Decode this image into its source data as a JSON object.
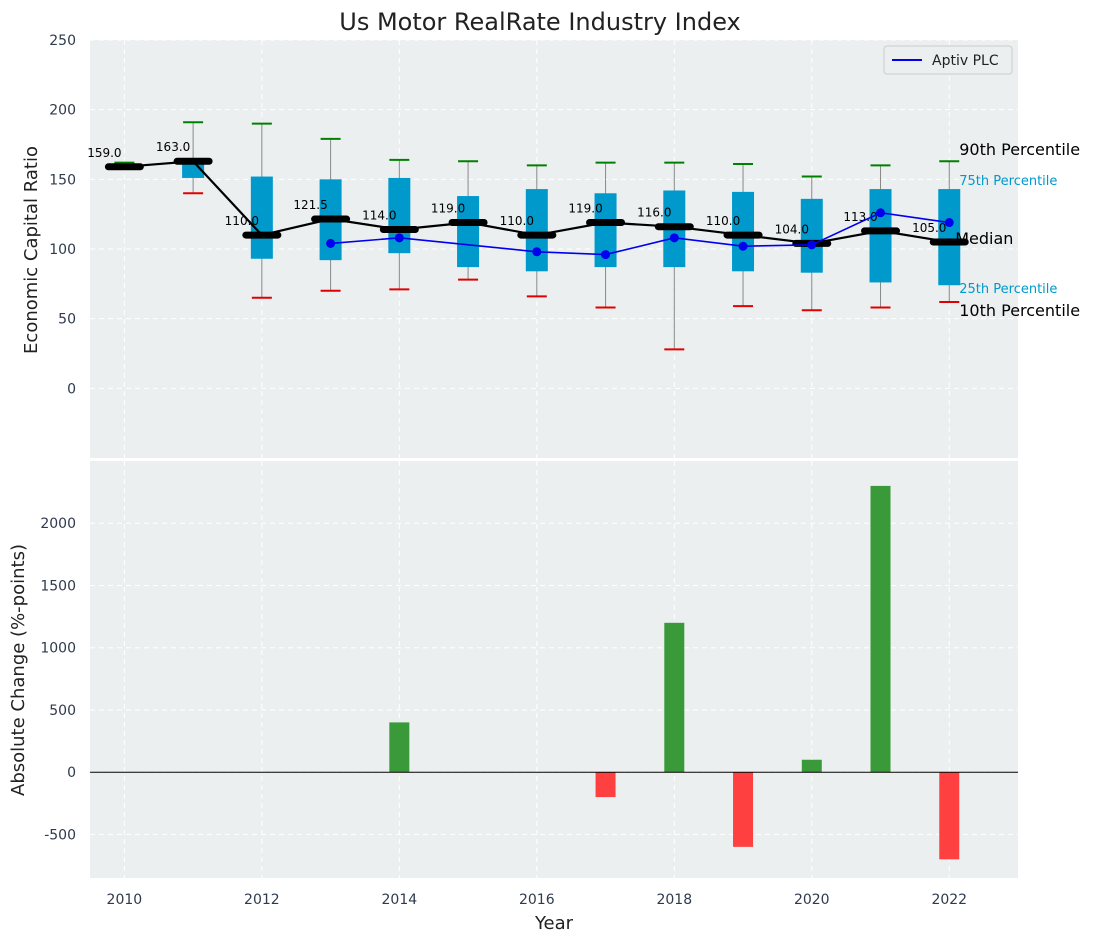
{
  "chart_data": [
    {
      "type": "box",
      "title": "Us Motor RealRate Industry Index",
      "ylabel": "Economic Capital Ratio",
      "ylim": [
        -50,
        250
      ],
      "yticks": [
        0,
        50,
        100,
        150,
        200,
        250
      ],
      "xlim": [
        2009.5,
        2023
      ],
      "legend": {
        "position": "top-right",
        "entries": [
          "Aptiv PLC"
        ]
      },
      "grid": true,
      "colors": {
        "box": "#0099cc",
        "median": "#000000",
        "p90_cap": "#008000",
        "p10_cap": "#e00000",
        "company": "#0000ee",
        "whisker": "#888888"
      },
      "years": [
        2010,
        2011,
        2012,
        2013,
        2014,
        2015,
        2016,
        2017,
        2018,
        2019,
        2020,
        2021,
        2022
      ],
      "median": [
        159.0,
        163.0,
        110.0,
        121.5,
        114.0,
        119.0,
        110.0,
        119.0,
        116.0,
        110.0,
        104.0,
        113.0,
        105.0
      ],
      "median_labels": [
        "159.0",
        "163.0",
        "110.0",
        "121.5",
        "114.0",
        "119.0",
        "110.0",
        "119.0",
        "116.0",
        "110.0",
        "104.0",
        "113.0",
        "105.0"
      ],
      "p25": [
        159,
        151,
        93,
        92,
        97,
        87,
        84,
        87,
        87,
        84,
        83,
        76,
        74
      ],
      "p75": [
        161,
        163,
        152,
        150,
        151,
        138,
        143,
        140,
        142,
        141,
        136,
        143,
        143
      ],
      "p10": [
        159,
        140,
        65,
        70,
        71,
        78,
        66,
        58,
        28,
        59,
        56,
        58,
        62
      ],
      "p90": [
        162,
        191,
        190,
        179,
        164,
        163,
        160,
        162,
        162,
        161,
        152,
        160,
        163
      ],
      "company": {
        "name": "Aptiv PLC",
        "x": [
          2013,
          2014,
          2016,
          2017,
          2018,
          2019,
          2020,
          2021,
          2022
        ],
        "y": [
          104,
          108,
          98,
          96,
          108,
          102,
          103,
          126,
          119
        ]
      },
      "side_labels": {
        "p90": "90th Percentile",
        "p75": "75th Percentile",
        "median": "Median",
        "p25": "25th Percentile",
        "p10": "10th Percentile"
      }
    },
    {
      "type": "bar",
      "xlabel": "Year",
      "ylabel": "Absolute Change (%-points)",
      "ylim": [
        -850,
        2500
      ],
      "yticks": [
        -500,
        0,
        500,
        1000,
        1500,
        2000
      ],
      "xticks": [
        2010,
        2012,
        2014,
        2016,
        2018,
        2020,
        2022
      ],
      "colors": {
        "positive": "#3a9a3a",
        "negative": "#ff4040"
      },
      "x": [
        2014,
        2017,
        2018,
        2019,
        2020,
        2021,
        2022
      ],
      "values": [
        400,
        -200,
        1200,
        -600,
        100,
        2300,
        -700
      ]
    }
  ]
}
